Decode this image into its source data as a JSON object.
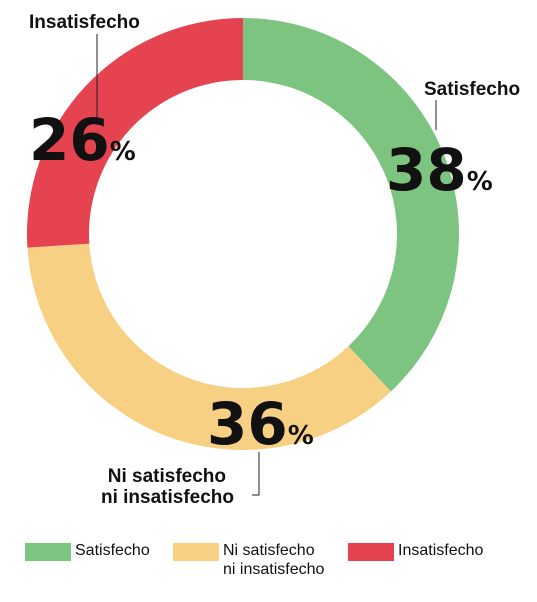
{
  "chart_data": {
    "type": "pie",
    "donut": true,
    "title": "",
    "slices": [
      {
        "label": "Satisfecho",
        "label_lines": [
          "Satisfecho"
        ],
        "value": 38,
        "color": "#7cc47f"
      },
      {
        "label": "Ni satisfecho ni insatisfecho",
        "label_lines": [
          "Ni satisfecho",
          "ni insatisfecho"
        ],
        "value": 36,
        "color": "#f8d084"
      },
      {
        "label": "Insatisfecho",
        "label_lines": [
          "Insatisfecho"
        ],
        "value": 26,
        "color": "#e5434f"
      }
    ],
    "value_suffix": "%",
    "legend": {
      "placement": "bottom",
      "items": [
        {
          "label": "Satisfecho",
          "color": "#7cc47f"
        },
        {
          "label": "Ni satisfecho\nni insatisfecho",
          "color": "#f8d084"
        },
        {
          "label": "Insatisfecho",
          "color": "#e5434f"
        }
      ]
    }
  }
}
